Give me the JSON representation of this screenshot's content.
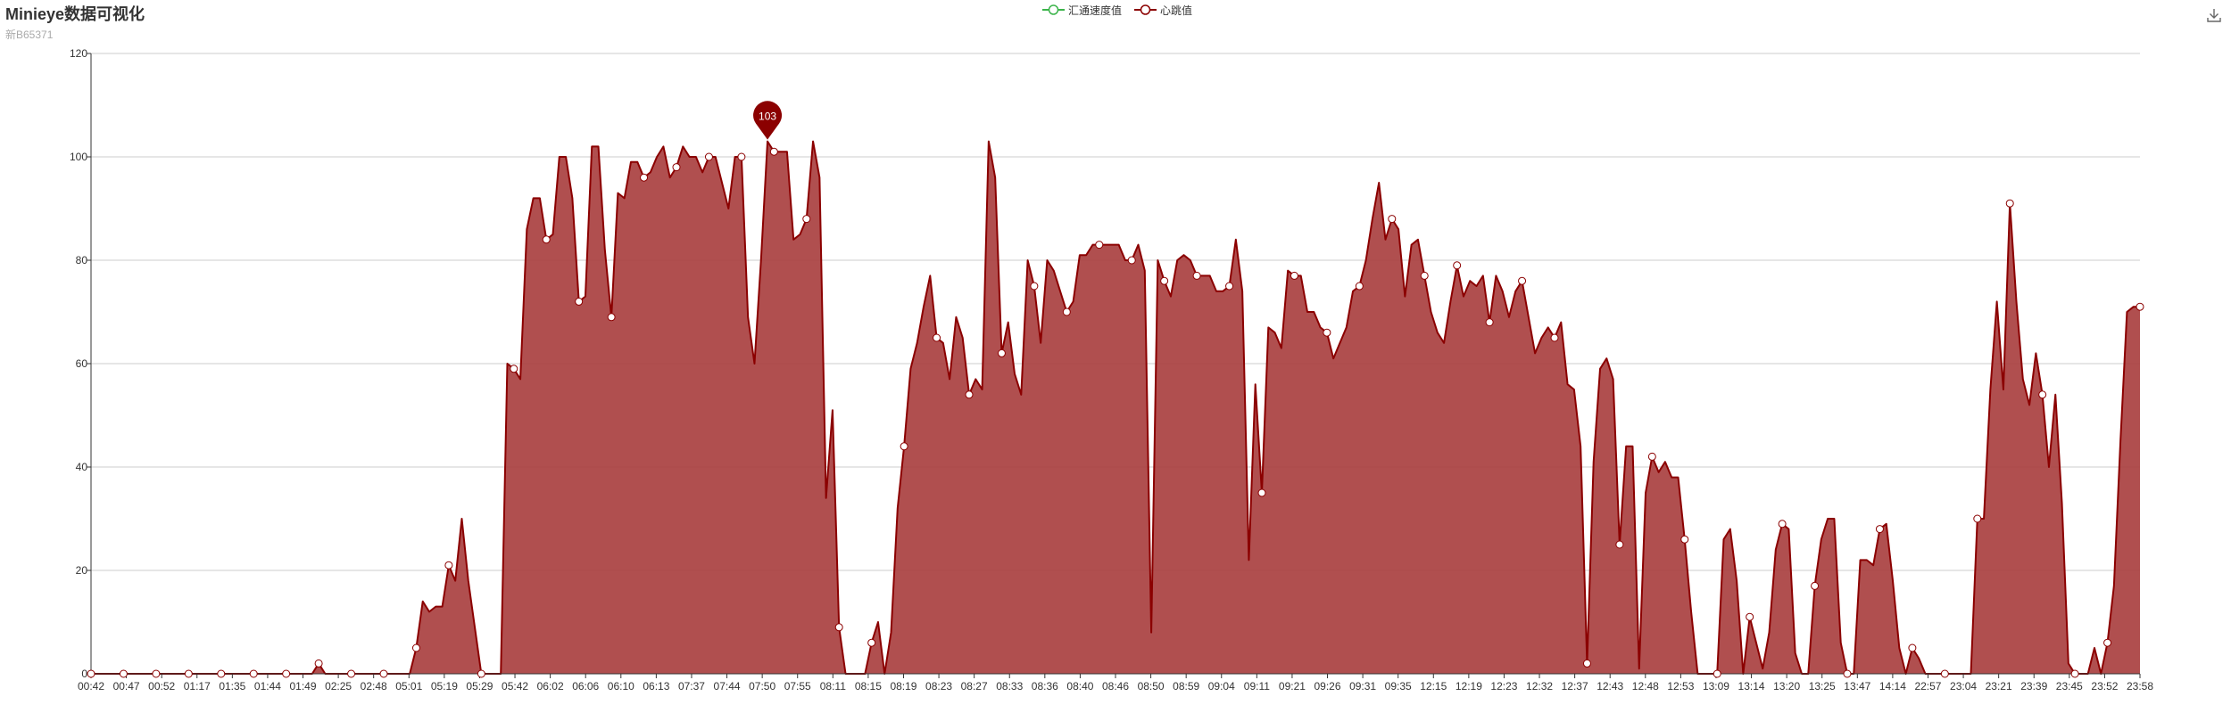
{
  "header": {
    "title": "Minieye数据可视化",
    "subtitle": "新B65371"
  },
  "legend": [
    {
      "name": "汇通速度值",
      "color": "#3cb44b"
    },
    {
      "name": "心跳值",
      "color": "#8b0000"
    }
  ],
  "toolbox": {
    "icon": "download-icon"
  },
  "colors": {
    "line": "#8b0000",
    "area": "#a94040",
    "marker": "#8b0000",
    "grid": "#cccccc",
    "axis": "#333333"
  },
  "chart_data": {
    "type": "area",
    "title": "",
    "xlabel": "",
    "ylabel": "",
    "ylim": [
      0,
      120
    ],
    "yticks": [
      0,
      20,
      40,
      60,
      80,
      100,
      120
    ],
    "grid": true,
    "legend_position": "top-center",
    "x_tick_labels": [
      "00:42",
      "00:47",
      "00:52",
      "01:17",
      "01:35",
      "01:44",
      "01:49",
      "02:25",
      "02:48",
      "05:01",
      "05:19",
      "05:29",
      "05:42",
      "06:02",
      "06:06",
      "06:10",
      "06:13",
      "07:37",
      "07:44",
      "07:50",
      "07:55",
      "08:11",
      "08:15",
      "08:19",
      "08:23",
      "08:27",
      "08:33",
      "08:36",
      "08:40",
      "08:46",
      "08:50",
      "08:59",
      "09:04",
      "09:11",
      "09:21",
      "09:26",
      "09:31",
      "09:35",
      "12:15",
      "12:19",
      "12:23",
      "12:32",
      "12:37",
      "12:43",
      "12:48",
      "12:53",
      "13:09",
      "13:14",
      "13:20",
      "13:25",
      "13:47",
      "14:14",
      "22:57",
      "23:04",
      "23:21",
      "23:39",
      "23:45",
      "23:52",
      "23:58"
    ],
    "series": [
      {
        "name": "汇通速度值",
        "color": "#3cb44b",
        "values": []
      },
      {
        "name": "心跳值",
        "color": "#8b0000",
        "values": [
          0,
          0,
          0,
          0,
          0,
          0,
          0,
          0,
          0,
          0,
          0,
          0,
          0,
          0,
          0,
          0,
          0,
          0,
          0,
          0,
          0,
          0,
          0,
          0,
          0,
          0,
          0,
          0,
          0,
          0,
          0,
          0,
          0,
          0,
          0,
          2,
          0,
          0,
          0,
          0,
          0,
          0,
          0,
          0,
          0,
          0,
          0,
          0,
          0,
          0,
          5,
          14,
          12,
          13,
          13,
          21,
          18,
          30,
          18,
          9,
          0,
          0,
          0,
          0,
          60,
          59,
          57,
          86,
          92,
          92,
          84,
          85,
          100,
          100,
          92,
          72,
          73,
          102,
          102,
          82,
          69,
          93,
          92,
          99,
          99,
          96,
          97,
          100,
          102,
          96,
          98,
          102,
          100,
          100,
          97,
          100,
          100,
          95,
          90,
          100,
          100,
          69,
          60,
          80,
          103,
          101,
          101,
          101,
          84,
          85,
          88,
          103,
          96,
          34,
          51,
          9,
          0,
          0,
          0,
          0,
          6,
          10,
          0,
          8,
          32,
          44,
          59,
          64,
          71,
          77,
          65,
          64,
          57,
          69,
          65,
          54,
          57,
          55,
          103,
          96,
          62,
          68,
          58,
          54,
          80,
          75,
          64,
          80,
          78,
          74,
          70,
          72,
          81,
          81,
          83,
          83,
          83,
          83,
          83,
          80,
          80,
          83,
          78,
          8,
          80,
          76,
          73,
          80,
          81,
          80,
          77,
          77,
          77,
          74,
          74,
          75,
          84,
          74,
          22,
          56,
          35,
          67,
          66,
          63,
          78,
          77,
          77,
          70,
          70,
          67,
          66,
          61,
          64,
          67,
          74,
          75,
          80,
          88,
          95,
          84,
          88,
          86,
          73,
          83,
          84,
          77,
          70,
          66,
          64,
          72,
          79,
          73,
          76,
          75,
          77,
          68,
          77,
          74,
          69,
          74,
          76,
          69,
          62,
          65,
          67,
          65,
          68,
          56,
          55,
          44,
          2,
          41,
          59,
          61,
          57,
          25,
          44,
          44,
          1,
          35,
          42,
          39,
          41,
          38,
          38,
          26,
          12,
          0,
          0,
          0,
          0,
          26,
          28,
          18,
          0,
          11,
          6,
          1,
          8,
          24,
          29,
          28,
          4,
          0,
          0,
          17,
          26,
          30,
          30,
          6,
          0,
          0,
          22,
          22,
          21,
          28,
          29,
          18,
          5,
          0,
          5,
          3,
          0,
          0,
          0,
          0,
          0,
          0,
          0,
          0,
          30,
          30,
          55,
          72,
          55,
          91,
          72,
          57,
          52,
          62,
          54,
          40,
          54,
          33,
          2,
          0,
          0,
          0,
          5,
          0,
          6,
          17,
          45,
          70,
          71,
          71
        ]
      }
    ],
    "annotations": [
      {
        "type": "max-pin",
        "label": "103",
        "value": 103
      }
    ]
  }
}
